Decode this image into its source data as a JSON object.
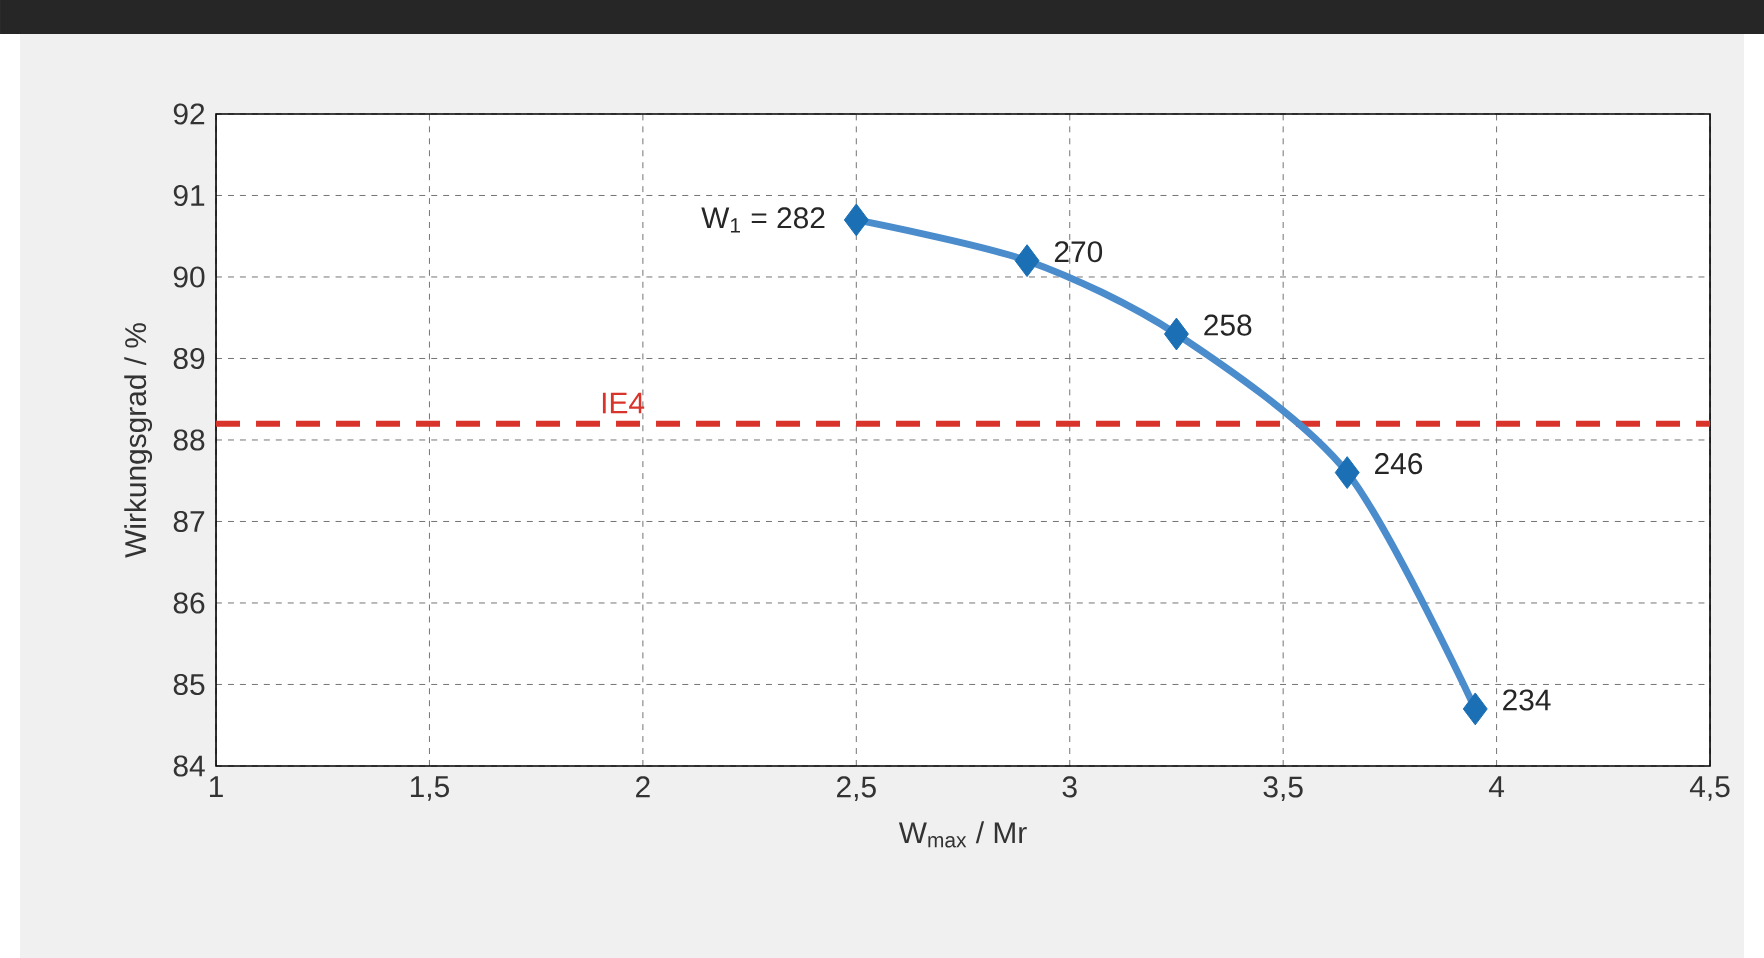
{
  "chart_data": {
    "type": "line",
    "xlabel": "W$_{max}$ / Mr",
    "ylabel": "Wirkungsgrad / %",
    "x": [
      2.5,
      2.9,
      3.25,
      3.65,
      3.95
    ],
    "series": [
      {
        "color": "#4a8ccc",
        "values": [
          90.7,
          90.2,
          89.3,
          87.6,
          84.7
        ]
      }
    ],
    "marker": "diamond",
    "line_style": "solid",
    "grid": true,
    "xlim": [
      1,
      4.5
    ],
    "xticks": [
      1,
      {
        "value": 1.5,
        "label": "1,5"
      },
      2,
      {
        "value": 2.5,
        "label": "2,5"
      },
      3,
      {
        "value": 3.5,
        "label": "3,5"
      },
      4,
      {
        "value": 4.5,
        "label": "4,5"
      }
    ],
    "ylim": [
      84,
      92
    ],
    "yticks": [
      84,
      85,
      86,
      87,
      88,
      89,
      90,
      91,
      92
    ],
    "ref_lines": [
      {
        "axis": "y",
        "value": 88.2,
        "label": "IE4",
        "color": "#d9342b",
        "line_style": "dashed"
      }
    ],
    "annotations": [
      {
        "text": "W$_{1}$ = 282",
        "x": 2.5,
        "y": 90.7
      },
      {
        "text": "270",
        "x": 2.9,
        "y": 90.2
      },
      {
        "text": "258",
        "x": 3.25,
        "y": 89.3
      },
      {
        "text": "246",
        "x": 3.65,
        "y": 87.6
      },
      {
        "text": "234",
        "x": 3.95,
        "y": 84.7
      }
    ]
  }
}
